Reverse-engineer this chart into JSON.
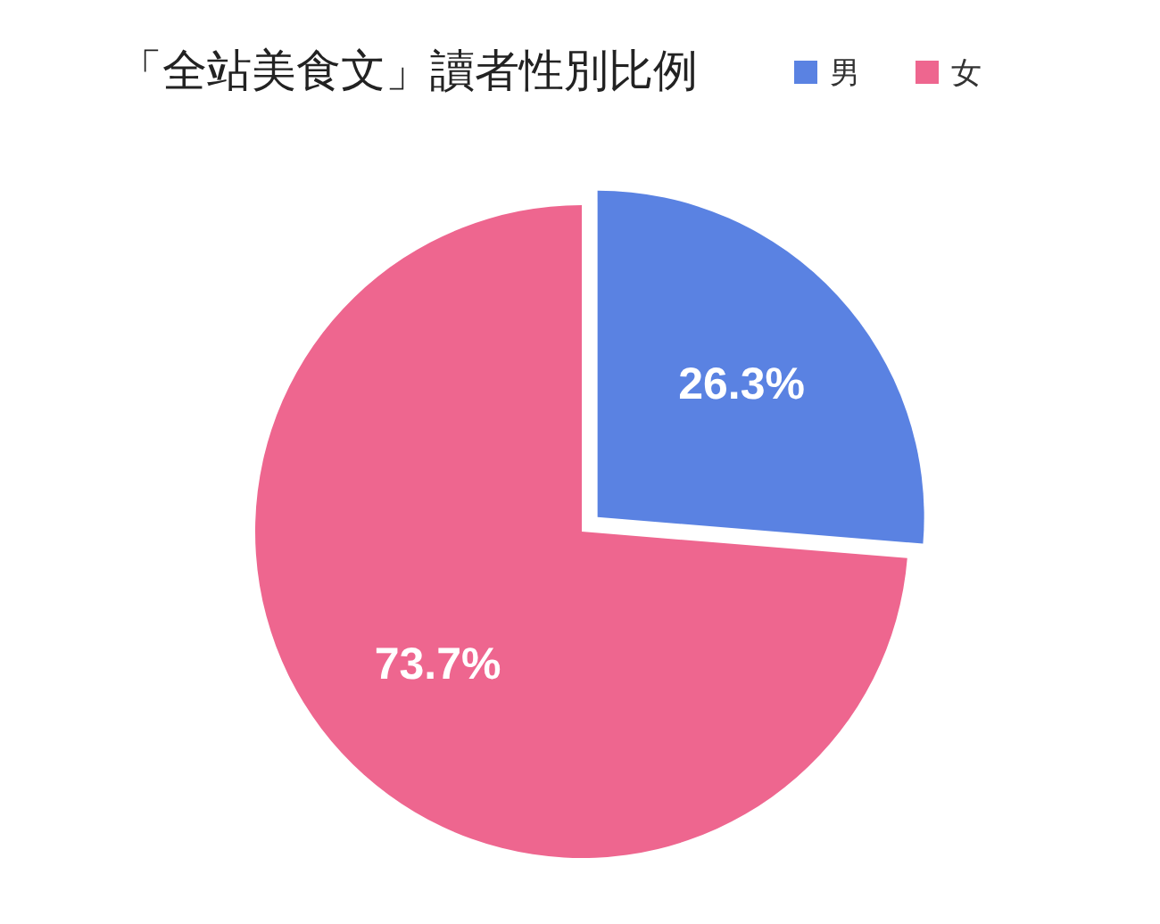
{
  "chart_data": {
    "type": "pie",
    "title": "「全站美食文」讀者性別比例",
    "categories": [
      "男",
      "女"
    ],
    "values": [
      26.3,
      73.7
    ],
    "colors": [
      "#5a82e2",
      "#ee668f"
    ],
    "value_labels": [
      "26.3%",
      "73.7%"
    ],
    "legend": "top right"
  }
}
